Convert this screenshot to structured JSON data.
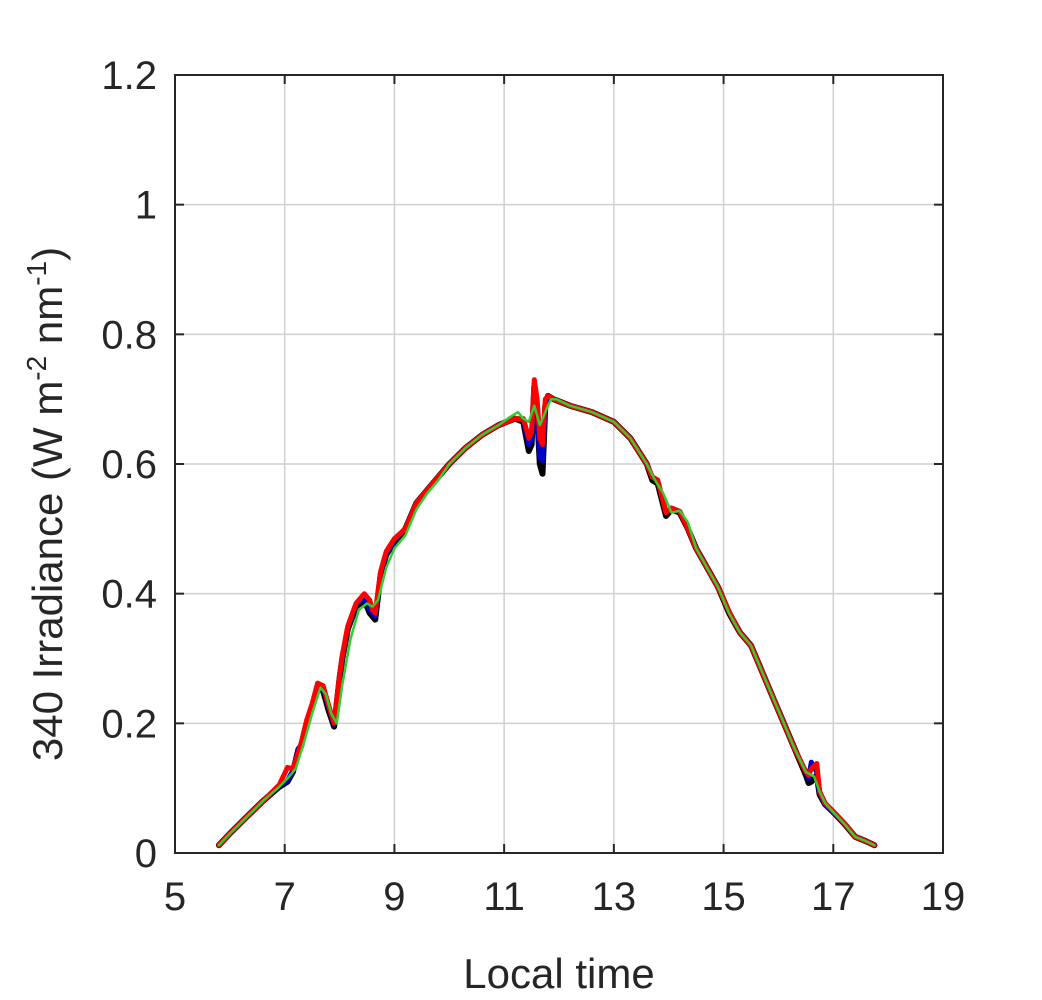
{
  "chart_data": {
    "type": "line",
    "title": "",
    "xlabel": "Local time",
    "ylabel": {
      "parts": [
        {
          "text": "340 Irradiance (W m",
          "sup": false
        },
        {
          "text": "-2",
          "sup": true
        },
        {
          "text": " nm",
          "sup": false
        },
        {
          "text": "-1",
          "sup": true
        },
        {
          "text": ")",
          "sup": false
        }
      ]
    },
    "xlim": [
      5,
      19
    ],
    "ylim": [
      0,
      1.2
    ],
    "xticks": [
      5,
      7,
      9,
      11,
      13,
      15,
      17,
      19
    ],
    "yticks": [
      0,
      0.2,
      0.4,
      0.6,
      0.8,
      1,
      1.2
    ],
    "xtick_labels": [
      "5",
      "7",
      "9",
      "11",
      "13",
      "15",
      "17",
      "19"
    ],
    "ytick_labels": [
      "0",
      "0.2",
      "0.4",
      "0.6",
      "0.8",
      "1",
      "1.2"
    ],
    "grid": true,
    "legend": "none",
    "series": [
      {
        "color": "#000000",
        "width": 6,
        "x": [
          5.8,
          6.0,
          6.3,
          6.6,
          6.9,
          7.05,
          7.15,
          7.25,
          7.3,
          7.4,
          7.5,
          7.6,
          7.7,
          7.8,
          7.9,
          8.0,
          8.05,
          8.15,
          8.3,
          8.45,
          8.55,
          8.6,
          8.65,
          8.75,
          8.85,
          9.0,
          9.2,
          9.4,
          9.6,
          9.8,
          10.0,
          10.3,
          10.6,
          10.9,
          11.2,
          11.35,
          11.45,
          11.5,
          11.55,
          11.6,
          11.65,
          11.7,
          11.75,
          11.8,
          11.9,
          12.2,
          12.6,
          13.0,
          13.3,
          13.6,
          13.7,
          13.8,
          13.95,
          14.05,
          14.2,
          14.35,
          14.5,
          14.7,
          14.9,
          15.1,
          15.3,
          15.5,
          15.7,
          15.9,
          16.1,
          16.3,
          16.5,
          16.55,
          16.6,
          16.7,
          16.75,
          16.85,
          17.0,
          17.2,
          17.4,
          17.6,
          17.75
        ],
        "y": [
          0.012,
          0.03,
          0.055,
          0.08,
          0.102,
          0.11,
          0.125,
          0.16,
          0.165,
          0.2,
          0.225,
          0.255,
          0.25,
          0.22,
          0.195,
          0.27,
          0.3,
          0.345,
          0.38,
          0.39,
          0.37,
          0.365,
          0.36,
          0.43,
          0.46,
          0.48,
          0.5,
          0.54,
          0.56,
          0.58,
          0.6,
          0.625,
          0.645,
          0.66,
          0.67,
          0.665,
          0.62,
          0.63,
          0.72,
          0.68,
          0.6,
          0.585,
          0.69,
          0.705,
          0.7,
          0.69,
          0.68,
          0.665,
          0.64,
          0.6,
          0.575,
          0.57,
          0.52,
          0.53,
          0.525,
          0.5,
          0.47,
          0.44,
          0.41,
          0.37,
          0.34,
          0.32,
          0.28,
          0.24,
          0.2,
          0.16,
          0.12,
          0.108,
          0.11,
          0.12,
          0.09,
          0.075,
          0.063,
          0.045,
          0.025,
          0.018,
          0.012
        ]
      },
      {
        "color": "#0000cc",
        "width": 5,
        "x": [
          5.8,
          6.0,
          6.3,
          6.6,
          6.9,
          7.05,
          7.15,
          7.25,
          7.3,
          7.4,
          7.5,
          7.6,
          7.7,
          7.8,
          7.9,
          8.0,
          8.05,
          8.15,
          8.3,
          8.45,
          8.55,
          8.6,
          8.65,
          8.75,
          8.85,
          9.0,
          9.2,
          9.4,
          9.6,
          9.8,
          10.0,
          10.3,
          10.6,
          10.9,
          11.2,
          11.35,
          11.45,
          11.5,
          11.55,
          11.6,
          11.65,
          11.7,
          11.75,
          11.8,
          11.9,
          12.2,
          12.6,
          13.0,
          13.3,
          13.6,
          13.7,
          13.8,
          13.95,
          14.05,
          14.2,
          14.35,
          14.5,
          14.7,
          14.9,
          15.1,
          15.3,
          15.5,
          15.7,
          15.9,
          16.1,
          16.3,
          16.5,
          16.55,
          16.6,
          16.7,
          16.75,
          16.85,
          17.0,
          17.2,
          17.4,
          17.6,
          17.75
        ],
        "y": [
          0.012,
          0.03,
          0.055,
          0.08,
          0.103,
          0.112,
          0.127,
          0.16,
          0.168,
          0.202,
          0.228,
          0.26,
          0.255,
          0.225,
          0.198,
          0.272,
          0.302,
          0.348,
          0.382,
          0.395,
          0.375,
          0.37,
          0.365,
          0.432,
          0.462,
          0.482,
          0.5,
          0.54,
          0.56,
          0.58,
          0.6,
          0.625,
          0.645,
          0.66,
          0.67,
          0.668,
          0.63,
          0.64,
          0.7,
          0.67,
          0.61,
          0.605,
          0.69,
          0.703,
          0.7,
          0.69,
          0.68,
          0.665,
          0.64,
          0.6,
          0.58,
          0.575,
          0.525,
          0.532,
          0.527,
          0.5,
          0.47,
          0.44,
          0.41,
          0.372,
          0.34,
          0.32,
          0.28,
          0.24,
          0.2,
          0.16,
          0.125,
          0.115,
          0.14,
          0.125,
          0.092,
          0.075,
          0.063,
          0.045,
          0.025,
          0.018,
          0.012
        ]
      },
      {
        "color": "#ff0000",
        "width": 5,
        "x": [
          5.8,
          6.0,
          6.3,
          6.6,
          6.9,
          7.05,
          7.15,
          7.25,
          7.3,
          7.4,
          7.5,
          7.6,
          7.7,
          7.8,
          7.9,
          8.0,
          8.05,
          8.15,
          8.3,
          8.45,
          8.55,
          8.6,
          8.65,
          8.75,
          8.85,
          9.0,
          9.2,
          9.4,
          9.6,
          9.8,
          10.0,
          10.3,
          10.6,
          10.9,
          11.2,
          11.35,
          11.45,
          11.5,
          11.55,
          11.6,
          11.65,
          11.7,
          11.75,
          11.8,
          11.9,
          12.2,
          12.6,
          13.0,
          13.3,
          13.6,
          13.7,
          13.8,
          13.95,
          14.05,
          14.2,
          14.35,
          14.5,
          14.7,
          14.9,
          15.1,
          15.3,
          15.5,
          15.7,
          15.9,
          16.1,
          16.3,
          16.5,
          16.55,
          16.6,
          16.7,
          16.75,
          16.85,
          17.0,
          17.2,
          17.4,
          17.6,
          17.75
        ],
        "y": [
          0.012,
          0.03,
          0.055,
          0.08,
          0.105,
          0.132,
          0.13,
          0.155,
          0.17,
          0.205,
          0.23,
          0.262,
          0.258,
          0.228,
          0.2,
          0.275,
          0.305,
          0.35,
          0.385,
          0.4,
          0.39,
          0.375,
          0.37,
          0.435,
          0.465,
          0.485,
          0.5,
          0.54,
          0.56,
          0.58,
          0.6,
          0.625,
          0.645,
          0.66,
          0.67,
          0.67,
          0.64,
          0.65,
          0.73,
          0.7,
          0.64,
          0.63,
          0.7,
          0.705,
          0.7,
          0.69,
          0.68,
          0.665,
          0.64,
          0.6,
          0.58,
          0.575,
          0.525,
          0.532,
          0.527,
          0.5,
          0.47,
          0.44,
          0.41,
          0.372,
          0.34,
          0.32,
          0.28,
          0.24,
          0.2,
          0.16,
          0.125,
          0.12,
          0.13,
          0.138,
          0.095,
          0.077,
          0.064,
          0.046,
          0.025,
          0.018,
          0.012
        ]
      },
      {
        "color": "#33cc33",
        "width": 2.5,
        "x": [
          5.8,
          6.0,
          6.3,
          6.6,
          6.9,
          7.05,
          7.2,
          7.35,
          7.5,
          7.65,
          7.75,
          7.85,
          7.95,
          8.05,
          8.2,
          8.35,
          8.5,
          8.6,
          8.7,
          8.85,
          9.0,
          9.2,
          9.4,
          9.6,
          9.8,
          10.0,
          10.3,
          10.6,
          10.9,
          11.1,
          11.25,
          11.35,
          11.45,
          11.55,
          11.65,
          11.75,
          11.85,
          11.95,
          12.2,
          12.6,
          13.0,
          13.3,
          13.6,
          13.75,
          13.9,
          14.05,
          14.2,
          14.35,
          14.5,
          14.7,
          14.9,
          15.1,
          15.3,
          15.5,
          15.7,
          15.9,
          16.1,
          16.3,
          16.5,
          16.65,
          16.75,
          16.85,
          17.0,
          17.2,
          17.4,
          17.6,
          17.75
        ],
        "y": [
          0.012,
          0.03,
          0.055,
          0.08,
          0.102,
          0.115,
          0.13,
          0.17,
          0.215,
          0.255,
          0.245,
          0.215,
          0.2,
          0.26,
          0.33,
          0.375,
          0.385,
          0.38,
          0.39,
          0.44,
          0.47,
          0.49,
          0.53,
          0.555,
          0.575,
          0.6,
          0.625,
          0.645,
          0.66,
          0.672,
          0.68,
          0.67,
          0.665,
          0.69,
          0.66,
          0.68,
          0.7,
          0.7,
          0.69,
          0.68,
          0.665,
          0.64,
          0.6,
          0.575,
          0.555,
          0.525,
          0.528,
          0.51,
          0.47,
          0.44,
          0.41,
          0.37,
          0.34,
          0.32,
          0.28,
          0.24,
          0.2,
          0.16,
          0.125,
          0.118,
          0.095,
          0.077,
          0.063,
          0.045,
          0.025,
          0.018,
          0.012
        ]
      }
    ]
  }
}
